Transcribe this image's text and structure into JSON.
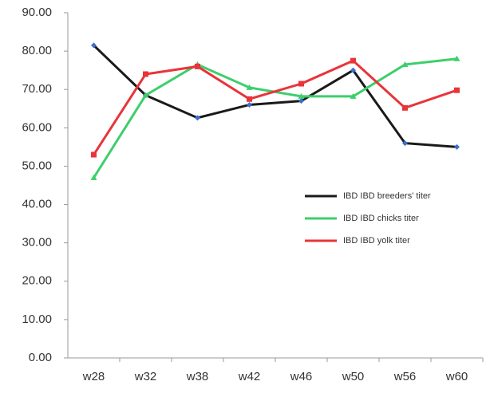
{
  "chart_data": {
    "type": "line",
    "categories": [
      "w28",
      "w32",
      "w38",
      "w42",
      "w46",
      "w50",
      "w56",
      "w60"
    ],
    "series": [
      {
        "name": "IBD IBD breeders' titer",
        "color": "#1a1a1a",
        "values": [
          81.5,
          68.5,
          62.6,
          66,
          67,
          75,
          56,
          55
        ]
      },
      {
        "name": "IBD IBD chicks titer",
        "color": "#3ccf6a",
        "values": [
          47,
          68.5,
          76.5,
          70.5,
          68.2,
          68.2,
          76.5,
          78
        ]
      },
      {
        "name": "IBD IBD yolk titer",
        "color": "#e8343a",
        "values": [
          53,
          74,
          76,
          67.5,
          71.5,
          77.5,
          65.2,
          69.8
        ]
      }
    ],
    "ylim": [
      0,
      90
    ],
    "yticks": [
      {
        "value": 0,
        "label": "0.00"
      },
      {
        "value": 10,
        "label": "10.00"
      },
      {
        "value": 20,
        "label": "20.00"
      },
      {
        "value": 30,
        "label": "30.00"
      },
      {
        "value": 40,
        "label": "40.00"
      },
      {
        "value": 50,
        "label": "50.00"
      },
      {
        "value": 60,
        "label": "60.00"
      },
      {
        "value": 70,
        "label": "70.00"
      },
      {
        "value": 80,
        "label": "80.00"
      },
      {
        "value": 90,
        "label": "90.00"
      }
    ],
    "grid": false
  }
}
